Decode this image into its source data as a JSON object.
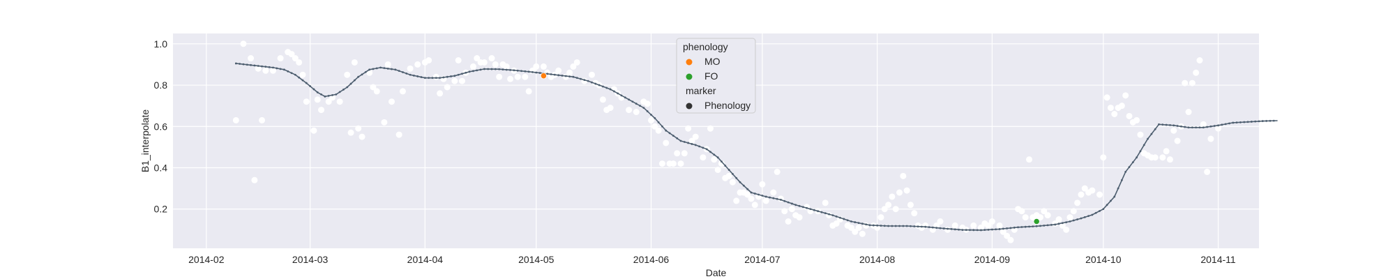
{
  "chart_data": {
    "type": "scatter",
    "title": "",
    "xlabel": "Date",
    "ylabel": "B1_interpolate",
    "x_range": [
      "2014-01-23",
      "2014-11-12"
    ],
    "ylim": [
      0.01,
      1.05
    ],
    "grid": true,
    "x_ticks": [
      "2014-02-01",
      "2014-03-01",
      "2014-04-01",
      "2014-05-01",
      "2014-06-01",
      "2014-07-01",
      "2014-08-01",
      "2014-09-01",
      "2014-10-01",
      "2014-11-01"
    ],
    "x_tick_labels": [
      "2014-02",
      "2014-03",
      "2014-04",
      "2014-05",
      "2014-06",
      "2014-07",
      "2014-08",
      "2014-09",
      "2014-10",
      "2014-11"
    ],
    "y_ticks": [
      0.2,
      0.4,
      0.6,
      0.8,
      1.0
    ],
    "y_tick_labels": [
      "0.2",
      "0.4",
      "0.6",
      "0.8",
      "1.0"
    ],
    "colors": {
      "plot_bg": "#eaeaf2",
      "grid": "#ffffff",
      "observations": "#ffffff",
      "curve": "#4c5d6e",
      "MO": "#ff7f0e",
      "FO": "#2ca02c",
      "marker": "#333333"
    },
    "observations": [
      [
        "2014-02-09",
        0.63
      ],
      [
        "2014-02-11",
        1.0
      ],
      [
        "2014-02-13",
        0.93
      ],
      [
        "2014-02-14",
        0.34
      ],
      [
        "2014-02-15",
        0.88
      ],
      [
        "2014-02-16",
        0.63
      ],
      [
        "2014-02-17",
        0.87
      ],
      [
        "2014-02-19",
        0.87
      ],
      [
        "2014-02-21",
        0.93
      ],
      [
        "2014-02-23",
        0.96
      ],
      [
        "2014-02-24",
        0.95
      ],
      [
        "2014-02-25",
        0.93
      ],
      [
        "2014-02-26",
        0.91
      ],
      [
        "2014-02-27",
        0.85
      ],
      [
        "2014-02-28",
        0.72
      ],
      [
        "2014-03-02",
        0.58
      ],
      [
        "2014-03-03",
        0.73
      ],
      [
        "2014-03-04",
        0.68
      ],
      [
        "2014-03-06",
        0.72
      ],
      [
        "2014-03-07",
        0.74
      ],
      [
        "2014-03-09",
        0.72
      ],
      [
        "2014-03-11",
        0.85
      ],
      [
        "2014-03-12",
        0.57
      ],
      [
        "2014-03-13",
        0.91
      ],
      [
        "2014-03-14",
        0.59
      ],
      [
        "2014-03-15",
        0.55
      ],
      [
        "2014-03-17",
        0.86
      ],
      [
        "2014-03-18",
        0.79
      ],
      [
        "2014-03-19",
        0.77
      ],
      [
        "2014-03-21",
        0.62
      ],
      [
        "2014-03-22",
        0.9
      ],
      [
        "2014-03-23",
        0.72
      ],
      [
        "2014-03-25",
        0.56
      ],
      [
        "2014-03-26",
        0.77
      ],
      [
        "2014-03-28",
        0.88
      ],
      [
        "2014-03-30",
        0.9
      ],
      [
        "2014-04-01",
        0.91
      ],
      [
        "2014-04-02",
        0.92
      ],
      [
        "2014-04-04",
        0.84
      ],
      [
        "2014-04-05",
        0.76
      ],
      [
        "2014-04-06",
        0.83
      ],
      [
        "2014-04-07",
        0.79
      ],
      [
        "2014-04-09",
        0.82
      ],
      [
        "2014-04-10",
        0.92
      ],
      [
        "2014-04-11",
        0.82
      ],
      [
        "2014-04-12",
        0.86
      ],
      [
        "2014-04-14",
        0.89
      ],
      [
        "2014-04-15",
        0.93
      ],
      [
        "2014-04-16",
        0.91
      ],
      [
        "2014-04-17",
        0.91
      ],
      [
        "2014-04-19",
        0.93
      ],
      [
        "2014-04-20",
        0.9
      ],
      [
        "2014-04-21",
        0.84
      ],
      [
        "2014-04-22",
        0.9
      ],
      [
        "2014-04-23",
        0.89
      ],
      [
        "2014-04-24",
        0.83
      ],
      [
        "2014-04-25",
        0.87
      ],
      [
        "2014-04-26",
        0.84
      ],
      [
        "2014-04-28",
        0.84
      ],
      [
        "2014-04-29",
        0.77
      ],
      [
        "2014-04-30",
        0.87
      ],
      [
        "2014-05-01",
        0.89
      ],
      [
        "2014-05-03",
        0.89
      ],
      [
        "2014-05-04",
        0.86
      ],
      [
        "2014-05-05",
        0.84
      ],
      [
        "2014-05-06",
        0.85
      ],
      [
        "2014-05-07",
        0.87
      ],
      [
        "2014-05-09",
        0.84
      ],
      [
        "2014-05-10",
        0.86
      ],
      [
        "2014-05-11",
        0.89
      ],
      [
        "2014-05-12",
        0.91
      ],
      [
        "2014-05-14",
        0.82
      ],
      [
        "2014-05-16",
        0.85
      ],
      [
        "2014-05-17",
        0.81
      ],
      [
        "2014-05-18",
        0.8
      ],
      [
        "2014-05-19",
        0.73
      ],
      [
        "2014-05-20",
        0.68
      ],
      [
        "2014-05-21",
        0.69
      ],
      [
        "2014-05-22",
        0.78
      ],
      [
        "2014-05-23",
        0.76
      ],
      [
        "2014-05-24",
        0.74
      ],
      [
        "2014-05-26",
        0.68
      ],
      [
        "2014-05-28",
        0.67
      ],
      [
        "2014-05-30",
        0.72
      ],
      [
        "2014-05-31",
        0.71
      ],
      [
        "2014-06-01",
        0.63
      ],
      [
        "2014-06-02",
        0.6
      ],
      [
        "2014-06-03",
        0.58
      ],
      [
        "2014-06-04",
        0.42
      ],
      [
        "2014-06-05",
        0.52
      ],
      [
        "2014-06-06",
        0.42
      ],
      [
        "2014-06-07",
        0.42
      ],
      [
        "2014-06-08",
        0.47
      ],
      [
        "2014-06-09",
        0.42
      ],
      [
        "2014-06-10",
        0.47
      ],
      [
        "2014-06-11",
        0.59
      ],
      [
        "2014-06-12",
        0.53
      ],
      [
        "2014-06-13",
        0.55
      ],
      [
        "2014-06-14",
        0.77
      ],
      [
        "2014-06-15",
        0.45
      ],
      [
        "2014-06-16",
        0.49
      ],
      [
        "2014-06-17",
        0.59
      ],
      [
        "2014-06-18",
        0.44
      ],
      [
        "2014-06-19",
        0.39
      ],
      [
        "2014-06-20",
        0.42
      ],
      [
        "2014-06-21",
        0.35
      ],
      [
        "2014-06-22",
        0.36
      ],
      [
        "2014-06-23",
        0.33
      ],
      [
        "2014-06-24",
        0.24
      ],
      [
        "2014-06-25",
        0.28
      ],
      [
        "2014-06-26",
        0.28
      ],
      [
        "2014-06-27",
        0.27
      ],
      [
        "2014-06-28",
        0.25
      ],
      [
        "2014-06-29",
        0.22
      ],
      [
        "2014-06-30",
        0.26
      ],
      [
        "2014-07-01",
        0.32
      ],
      [
        "2014-07-02",
        0.24
      ],
      [
        "2014-07-04",
        0.28
      ],
      [
        "2014-07-05",
        0.38
      ],
      [
        "2014-07-06",
        0.25
      ],
      [
        "2014-07-07",
        0.19
      ],
      [
        "2014-07-08",
        0.14
      ],
      [
        "2014-07-09",
        0.2
      ],
      [
        "2014-07-10",
        0.17
      ],
      [
        "2014-07-11",
        0.16
      ],
      [
        "2014-07-13",
        0.21
      ],
      [
        "2014-07-14",
        0.19
      ],
      [
        "2014-07-16",
        0.19
      ],
      [
        "2014-07-18",
        0.23
      ],
      [
        "2014-07-19",
        0.17
      ],
      [
        "2014-07-20",
        0.12
      ],
      [
        "2014-07-21",
        0.13
      ],
      [
        "2014-07-22",
        0.15
      ],
      [
        "2014-07-24",
        0.12
      ],
      [
        "2014-07-25",
        0.11
      ],
      [
        "2014-07-26",
        0.09
      ],
      [
        "2014-07-27",
        0.11
      ],
      [
        "2014-07-28",
        0.08
      ],
      [
        "2014-07-29",
        0.12
      ],
      [
        "2014-07-31",
        0.12
      ],
      [
        "2014-08-01",
        0.11
      ],
      [
        "2014-08-02",
        0.16
      ],
      [
        "2014-08-03",
        0.2
      ],
      [
        "2014-08-04",
        0.22
      ],
      [
        "2014-08-05",
        0.26
      ],
      [
        "2014-08-06",
        0.2
      ],
      [
        "2014-08-07",
        0.28
      ],
      [
        "2014-08-08",
        0.36
      ],
      [
        "2014-08-09",
        0.29
      ],
      [
        "2014-08-10",
        0.22
      ],
      [
        "2014-08-11",
        0.18
      ],
      [
        "2014-08-12",
        0.12
      ],
      [
        "2014-08-13",
        0.11
      ],
      [
        "2014-08-14",
        0.12
      ],
      [
        "2014-08-16",
        0.1
      ],
      [
        "2014-08-17",
        0.12
      ],
      [
        "2014-08-18",
        0.14
      ],
      [
        "2014-08-20",
        0.1
      ],
      [
        "2014-08-22",
        0.12
      ],
      [
        "2014-08-24",
        0.11
      ],
      [
        "2014-08-25",
        0.1
      ],
      [
        "2014-08-27",
        0.12
      ],
      [
        "2014-08-29",
        0.11
      ],
      [
        "2014-08-30",
        0.13
      ],
      [
        "2014-08-31",
        0.12
      ],
      [
        "2014-09-01",
        0.14
      ],
      [
        "2014-09-03",
        0.12
      ],
      [
        "2014-09-04",
        0.09
      ],
      [
        "2014-09-05",
        0.07
      ],
      [
        "2014-09-06",
        0.05
      ],
      [
        "2014-09-07",
        0.1
      ],
      [
        "2014-09-08",
        0.2
      ],
      [
        "2014-09-09",
        0.19
      ],
      [
        "2014-09-10",
        0.16
      ],
      [
        "2014-09-11",
        0.44
      ],
      [
        "2014-09-12",
        0.16
      ],
      [
        "2014-09-13",
        0.17
      ],
      [
        "2014-09-14",
        0.16
      ],
      [
        "2014-09-15",
        0.19
      ],
      [
        "2014-09-16",
        0.17
      ],
      [
        "2014-09-18",
        0.13
      ],
      [
        "2014-09-19",
        0.15
      ],
      [
        "2014-09-20",
        0.12
      ],
      [
        "2014-09-21",
        0.1
      ],
      [
        "2014-09-22",
        0.16
      ],
      [
        "2014-09-23",
        0.19
      ],
      [
        "2014-09-24",
        0.23
      ],
      [
        "2014-09-25",
        0.27
      ],
      [
        "2014-09-26",
        0.3
      ],
      [
        "2014-09-27",
        0.28
      ],
      [
        "2014-09-28",
        0.29
      ],
      [
        "2014-09-30",
        0.27
      ],
      [
        "2014-10-01",
        0.45
      ],
      [
        "2014-10-02",
        0.74
      ],
      [
        "2014-10-03",
        0.69
      ],
      [
        "2014-10-04",
        0.66
      ],
      [
        "2014-10-05",
        0.69
      ],
      [
        "2014-10-06",
        0.7
      ],
      [
        "2014-10-07",
        0.75
      ],
      [
        "2014-10-08",
        0.65
      ],
      [
        "2014-10-09",
        0.62
      ],
      [
        "2014-10-10",
        0.63
      ],
      [
        "2014-10-11",
        0.56
      ],
      [
        "2014-10-12",
        0.47
      ],
      [
        "2014-10-13",
        0.46
      ],
      [
        "2014-10-14",
        0.45
      ],
      [
        "2014-10-15",
        0.45
      ],
      [
        "2014-10-17",
        0.45
      ],
      [
        "2014-10-18",
        0.48
      ],
      [
        "2014-10-19",
        0.44
      ],
      [
        "2014-10-20",
        0.58
      ],
      [
        "2014-10-21",
        0.53
      ],
      [
        "2014-10-22",
        0.6
      ],
      [
        "2014-10-23",
        0.81
      ],
      [
        "2014-10-24",
        0.67
      ],
      [
        "2014-10-25",
        0.81
      ],
      [
        "2014-10-26",
        0.86
      ],
      [
        "2014-10-27",
        0.92
      ],
      [
        "2014-10-28",
        0.61
      ],
      [
        "2014-10-29",
        0.38
      ],
      [
        "2014-10-30",
        0.54
      ],
      [
        "2014-11-01",
        0.59
      ]
    ],
    "interpolated_curve": [
      [
        "2014-02-09",
        0.905
      ],
      [
        "2014-02-14",
        0.895
      ],
      [
        "2014-02-19",
        0.885
      ],
      [
        "2014-02-22",
        0.875
      ],
      [
        "2014-02-25",
        0.85
      ],
      [
        "2014-02-28",
        0.81
      ],
      [
        "2014-03-03",
        0.765
      ],
      [
        "2014-03-05",
        0.745
      ],
      [
        "2014-03-08",
        0.755
      ],
      [
        "2014-03-11",
        0.79
      ],
      [
        "2014-03-14",
        0.84
      ],
      [
        "2014-03-17",
        0.875
      ],
      [
        "2014-03-20",
        0.885
      ],
      [
        "2014-03-24",
        0.875
      ],
      [
        "2014-03-28",
        0.85
      ],
      [
        "2014-04-01",
        0.835
      ],
      [
        "2014-04-05",
        0.835
      ],
      [
        "2014-04-09",
        0.845
      ],
      [
        "2014-04-13",
        0.865
      ],
      [
        "2014-04-17",
        0.878
      ],
      [
        "2014-04-21",
        0.877
      ],
      [
        "2014-04-25",
        0.872
      ],
      [
        "2014-04-29",
        0.865
      ],
      [
        "2014-05-03",
        0.857
      ],
      [
        "2014-05-07",
        0.848
      ],
      [
        "2014-05-11",
        0.84
      ],
      [
        "2014-05-15",
        0.82
      ],
      [
        "2014-05-18",
        0.8
      ],
      [
        "2014-05-21",
        0.78
      ],
      [
        "2014-05-24",
        0.75
      ],
      [
        "2014-05-27",
        0.72
      ],
      [
        "2014-05-30",
        0.69
      ],
      [
        "2014-06-02",
        0.64
      ],
      [
        "2014-06-05",
        0.58
      ],
      [
        "2014-06-09",
        0.53
      ],
      [
        "2014-06-13",
        0.51
      ],
      [
        "2014-06-16",
        0.49
      ],
      [
        "2014-06-19",
        0.45
      ],
      [
        "2014-06-22",
        0.39
      ],
      [
        "2014-06-25",
        0.33
      ],
      [
        "2014-06-28",
        0.28
      ],
      [
        "2014-07-02",
        0.26
      ],
      [
        "2014-07-06",
        0.245
      ],
      [
        "2014-07-10",
        0.22
      ],
      [
        "2014-07-15",
        0.195
      ],
      [
        "2014-07-20",
        0.17
      ],
      [
        "2014-07-25",
        0.14
      ],
      [
        "2014-07-30",
        0.122
      ],
      [
        "2014-08-04",
        0.118
      ],
      [
        "2014-08-09",
        0.118
      ],
      [
        "2014-08-14",
        0.114
      ],
      [
        "2014-08-19",
        0.106
      ],
      [
        "2014-08-24",
        0.099
      ],
      [
        "2014-08-29",
        0.098
      ],
      [
        "2014-09-03",
        0.103
      ],
      [
        "2014-09-08",
        0.112
      ],
      [
        "2014-09-13",
        0.117
      ],
      [
        "2014-09-18",
        0.125
      ],
      [
        "2014-09-22",
        0.14
      ],
      [
        "2014-09-25",
        0.155
      ],
      [
        "2014-09-28",
        0.172
      ],
      [
        "2014-10-01",
        0.2
      ],
      [
        "2014-10-04",
        0.26
      ],
      [
        "2014-10-07",
        0.38
      ],
      [
        "2014-10-10",
        0.45
      ],
      [
        "2014-10-13",
        0.54
      ],
      [
        "2014-10-16",
        0.61
      ],
      [
        "2014-10-20",
        0.605
      ],
      [
        "2014-10-24",
        0.595
      ],
      [
        "2014-10-28",
        0.595
      ],
      [
        "2014-11-01",
        0.605
      ],
      [
        "2014-11-05",
        0.618
      ],
      [
        "2014-11-09",
        0.622
      ],
      [
        "2014-11-13",
        0.626
      ],
      [
        "2014-11-17",
        0.628
      ]
    ],
    "phenology_points": [
      {
        "label": "MO",
        "date": "2014-05-03",
        "value": 0.845
      },
      {
        "label": "FO",
        "date": "2014-09-13",
        "value": 0.14
      }
    ],
    "legend": {
      "placement": "top-center",
      "title_hue": "phenology",
      "entries": [
        {
          "label": "MO",
          "color": "#ff7f0e"
        },
        {
          "label": "FO",
          "color": "#2ca02c"
        }
      ],
      "title_marker": "marker",
      "marker_entries": [
        {
          "label": "Phenology",
          "color": "#333333"
        }
      ]
    }
  }
}
